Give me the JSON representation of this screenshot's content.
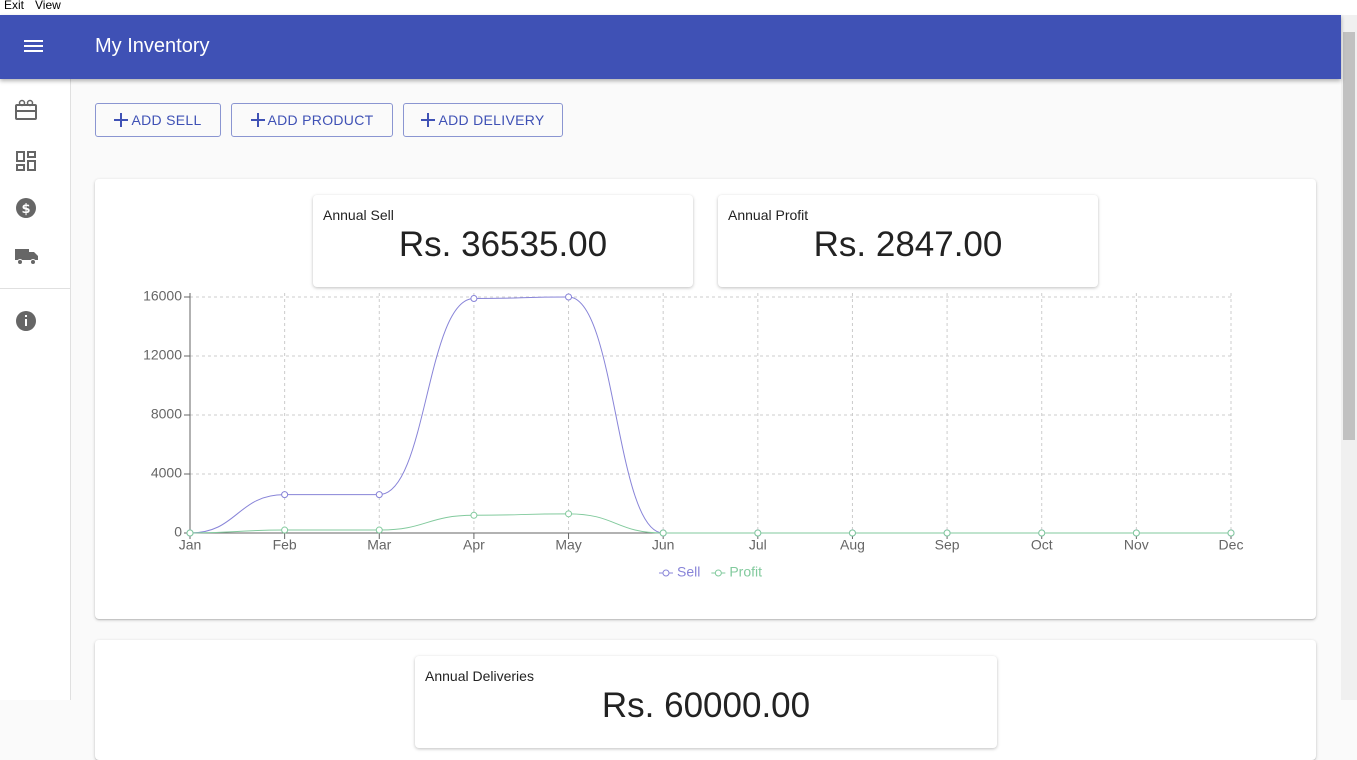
{
  "menu": [
    "Exit",
    "View"
  ],
  "app_bar": {
    "title": "My Inventory"
  },
  "buttons": [
    "ADD SELL",
    "ADD PRODUCT",
    "ADD DELIVERY"
  ],
  "stats": [
    {
      "label": "Annual Sell",
      "value": "Rs. 36535.00"
    },
    {
      "label": "Annual Profit",
      "value": "Rs. 2847.00"
    }
  ],
  "chart_data": {
    "type": "line",
    "categories": [
      "Jan",
      "Feb",
      "Mar",
      "Apr",
      "May",
      "Jun",
      "Jul",
      "Aug",
      "Sep",
      "Oct",
      "Nov",
      "Dec"
    ],
    "series": [
      {
        "name": "Sell",
        "color": "#8884d8",
        "values": [
          0,
          2600,
          2600,
          15900,
          16000,
          0,
          0,
          0,
          0,
          0,
          0,
          0
        ]
      },
      {
        "name": "Profit",
        "color": "#82ca9d",
        "values": [
          0,
          200,
          200,
          1200,
          1300,
          0,
          0,
          0,
          0,
          0,
          0,
          0
        ]
      }
    ],
    "ylim": [
      0,
      16000
    ],
    "yticks": [
      0,
      4000,
      8000,
      12000,
      16000
    ],
    "grid": true,
    "smooth": true,
    "legend": "bottom"
  },
  "deliveries": {
    "label": "Annual Deliveries",
    "value": "Rs. 60000.00"
  }
}
